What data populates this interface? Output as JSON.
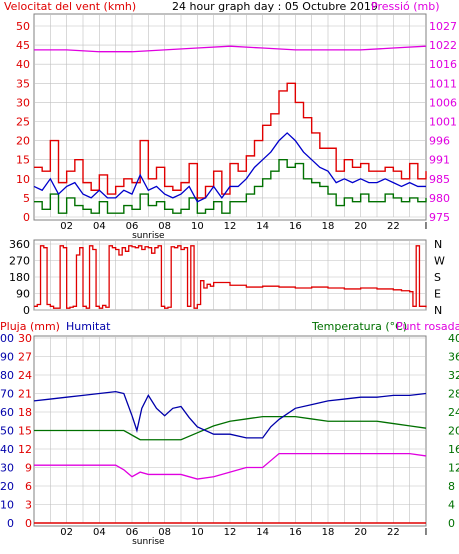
{
  "header": {
    "wind_title": "Velocitat del vent (kmh)",
    "center_title": "24 hour graph day : 05 Octubre 2019",
    "pressure_title": "Pressió (mb)"
  },
  "bottom_header": {
    "rain_title": "Pluja (mm)",
    "humidity_title": "Humitat",
    "temp_title": "Temperatura (°C)",
    "dew_title": "Punt rosada"
  },
  "colors": {
    "wind_axis": "#e00000",
    "pressure_axis": "#e000e0",
    "gust": "#e00000",
    "avg_wind": "#0000cc",
    "base_wind": "#007000",
    "wind_dir": "#e00000",
    "humidity": "#0000aa",
    "temperature": "#007000",
    "dew_point": "#e000e0",
    "rain": "#e00000",
    "grid": "#c0c0c0",
    "frame": "#808080",
    "dark_bar": "#800000"
  },
  "chart_data": [
    {
      "type": "line",
      "name": "wind-pressure",
      "xlabel": "sunrise",
      "x_ticks": [
        "02",
        "04",
        "06",
        "08",
        "10",
        "12",
        "14",
        "16",
        "18",
        "20",
        "22",
        "I"
      ],
      "y_left_ticks": [
        "0",
        "5",
        "10",
        "15",
        "20",
        "25",
        "30",
        "35",
        "40",
        "45",
        "50"
      ],
      "y_left_range": [
        0,
        50
      ],
      "y_right_ticks": [
        "975",
        "980",
        "985",
        "991",
        "996",
        "1001",
        "1006",
        "1011",
        "1016",
        "1022",
        "1027"
      ],
      "y_right_range": [
        975,
        1027
      ],
      "series": [
        {
          "key": "gust",
          "hours": [
            0,
            0.5,
            1,
            1.5,
            2,
            2.5,
            3,
            3.5,
            4,
            4.5,
            5,
            5.5,
            6,
            6.5,
            7,
            7.5,
            8,
            8.5,
            9,
            9.5,
            10,
            10.5,
            11,
            11.5,
            12,
            12.5,
            13,
            13.5,
            14,
            14.5,
            15,
            15.5,
            16,
            16.5,
            17,
            17.5,
            18,
            18.5,
            19,
            19.5,
            20,
            20.5,
            21,
            21.5,
            22,
            22.5,
            23,
            23.5,
            24
          ],
          "values": [
            13,
            12,
            20,
            9,
            12,
            15,
            9,
            7,
            11,
            6,
            8,
            10,
            9,
            20,
            10,
            13,
            8,
            7,
            9,
            14,
            5,
            8,
            12,
            6,
            14,
            12,
            16,
            20,
            24,
            27,
            33,
            35,
            30,
            26,
            22,
            18,
            18,
            12,
            15,
            13,
            14,
            12,
            12,
            13,
            12,
            10,
            14,
            10,
            12
          ]
        },
        {
          "key": "avg_wind",
          "hours": [
            0,
            0.5,
            1,
            1.5,
            2,
            2.5,
            3,
            3.5,
            4,
            4.5,
            5,
            5.5,
            6,
            6.5,
            7,
            7.5,
            8,
            8.5,
            9,
            9.5,
            10,
            10.5,
            11,
            11.5,
            12,
            12.5,
            13,
            13.5,
            14,
            14.5,
            15,
            15.5,
            16,
            16.5,
            17,
            17.5,
            18,
            18.5,
            19,
            19.5,
            20,
            20.5,
            21,
            21.5,
            22,
            22.5,
            23,
            23.5,
            24
          ],
          "values": [
            8,
            7,
            10,
            6,
            8,
            9,
            6,
            5,
            7,
            5,
            5,
            7,
            6,
            11,
            7,
            8,
            6,
            5,
            6,
            8,
            4,
            5,
            8,
            5,
            8,
            8,
            10,
            13,
            15,
            17,
            20,
            22,
            20,
            17,
            15,
            13,
            12,
            9,
            10,
            9,
            10,
            9,
            9,
            10,
            9,
            8,
            9,
            8,
            8
          ]
        },
        {
          "key": "base_wind",
          "hours": [
            0,
            0.5,
            1,
            1.5,
            2,
            2.5,
            3,
            3.5,
            4,
            4.5,
            5,
            5.5,
            6,
            6.5,
            7,
            7.5,
            8,
            8.5,
            9,
            9.5,
            10,
            10.5,
            11,
            11.5,
            12,
            12.5,
            13,
            13.5,
            14,
            14.5,
            15,
            15.5,
            16,
            16.5,
            17,
            17.5,
            18,
            18.5,
            19,
            19.5,
            20,
            20.5,
            21,
            21.5,
            22,
            22.5,
            23,
            23.5,
            24
          ],
          "values": [
            4,
            2,
            6,
            1,
            5,
            3,
            2,
            1,
            4,
            1,
            1,
            3,
            2,
            6,
            3,
            4,
            2,
            1,
            2,
            5,
            1,
            2,
            4,
            1,
            4,
            4,
            6,
            8,
            10,
            12,
            15,
            13,
            14,
            10,
            9,
            8,
            6,
            3,
            5,
            4,
            6,
            4,
            4,
            6,
            5,
            4,
            5,
            4,
            5
          ]
        },
        {
          "key": "pressure",
          "hours": [
            0,
            2,
            4,
            6,
            8,
            10,
            12,
            14,
            16,
            18,
            20,
            22,
            24
          ],
          "values": [
            1020.5,
            1020.5,
            1020,
            1020,
            1020.5,
            1021,
            1021.5,
            1021,
            1020.5,
            1020.5,
            1020.5,
            1021,
            1021.5
          ]
        }
      ]
    },
    {
      "type": "line",
      "name": "wind-direction",
      "y_ticks": [
        "360",
        "270",
        "180",
        "90",
        "0"
      ],
      "y_range": [
        0,
        360
      ],
      "y_right_ticks": [
        "N",
        "W",
        "S",
        "E",
        "N"
      ],
      "series": [
        {
          "key": "wind_dir",
          "hours": [
            0,
            0.2,
            0.4,
            0.6,
            0.8,
            1.0,
            1.2,
            1.4,
            1.6,
            1.8,
            2.0,
            2.2,
            2.4,
            2.6,
            2.8,
            3.0,
            3.2,
            3.4,
            3.6,
            3.8,
            4.0,
            4.2,
            4.4,
            4.6,
            4.8,
            5.0,
            5.2,
            5.4,
            5.6,
            5.8,
            6.0,
            6.2,
            6.4,
            6.6,
            6.8,
            7.0,
            7.2,
            7.4,
            7.6,
            7.8,
            8.0,
            8.2,
            8.4,
            8.6,
            8.8,
            9.0,
            9.2,
            9.4,
            9.6,
            9.8,
            10.0,
            10.2,
            10.4,
            10.6,
            10.8,
            11.0,
            12,
            13,
            14,
            15,
            16,
            17,
            18,
            19,
            20,
            21,
            22,
            22.5,
            23,
            23.2,
            23.4,
            23.6,
            24
          ],
          "values": [
            20,
            30,
            350,
            340,
            30,
            20,
            10,
            10,
            350,
            340,
            10,
            15,
            20,
            300,
            340,
            20,
            10,
            350,
            330,
            20,
            10,
            25,
            15,
            350,
            340,
            330,
            300,
            340,
            320,
            350,
            345,
            340,
            350,
            330,
            345,
            340,
            310,
            340,
            350,
            20,
            10,
            15,
            345,
            340,
            350,
            330,
            340,
            20,
            350,
            10,
            30,
            160,
            120,
            140,
            130,
            150,
            135,
            125,
            130,
            125,
            120,
            125,
            120,
            115,
            120,
            115,
            110,
            105,
            100,
            20,
            350,
            20,
            15
          ]
        }
      ]
    },
    {
      "type": "line",
      "name": "humidity-temperature",
      "xlabel": "sunrise",
      "x_ticks": [
        "02",
        "04",
        "06",
        "08",
        "10",
        "12",
        "14",
        "16",
        "18",
        "20",
        "22",
        "I"
      ],
      "y_left_ticks": [
        "0",
        "10",
        "20",
        "30",
        "40",
        "50",
        "60",
        "70",
        "80",
        "90",
        "100"
      ],
      "y_left_range": [
        0,
        100
      ],
      "y_rain_ticks": [
        "0",
        "3",
        "6",
        "9",
        "12",
        "15",
        "18",
        "21",
        "24",
        "27",
        "30"
      ],
      "y_rain_range": [
        0,
        30
      ],
      "y_right_ticks": [
        "0",
        "4",
        "8",
        "12",
        "16",
        "20",
        "24",
        "28",
        "32",
        "36",
        "40"
      ],
      "y_right_range": [
        0,
        40
      ],
      "series": [
        {
          "key": "humidity",
          "hours": [
            0,
            1,
            2,
            3,
            4,
            5,
            5.5,
            6,
            6.3,
            6.6,
            7,
            7.5,
            8,
            8.5,
            9,
            9.5,
            10,
            11,
            12,
            13,
            14,
            14.5,
            15,
            16,
            17,
            18,
            19,
            20,
            21,
            22,
            23,
            24
          ],
          "values": [
            66,
            67,
            68,
            69,
            70,
            71,
            70,
            58,
            50,
            62,
            69,
            62,
            58,
            62,
            63,
            57,
            52,
            48,
            48,
            46,
            46,
            52,
            56,
            62,
            64,
            66,
            67,
            68,
            68,
            69,
            69,
            70
          ]
        },
        {
          "key": "temperature",
          "hours": [
            0,
            1,
            2,
            3,
            4,
            5,
            5.5,
            6,
            6.5,
            7,
            8,
            9,
            10,
            11,
            12,
            13,
            14,
            15,
            16,
            17,
            18,
            19,
            20,
            21,
            22,
            23,
            24
          ],
          "values": [
            20,
            20,
            20,
            20,
            20,
            20,
            20,
            19,
            18,
            18,
            18,
            18,
            19.5,
            21,
            22,
            22.5,
            23,
            23,
            23,
            22.5,
            22,
            22,
            22,
            22,
            21.5,
            21,
            20.5
          ]
        },
        {
          "key": "dew_point",
          "hours": [
            0,
            1,
            2,
            3,
            4,
            5,
            5.5,
            6,
            6.5,
            7,
            8,
            9,
            10,
            11,
            12,
            13,
            14,
            14.5,
            15,
            16,
            17,
            18,
            19,
            20,
            21,
            22,
            23,
            24
          ],
          "values": [
            12.5,
            12.5,
            12.5,
            12.5,
            12.5,
            12.5,
            11.5,
            10,
            11,
            10.5,
            10.5,
            10.5,
            9.5,
            10,
            11,
            12,
            12,
            13.5,
            15,
            15,
            15,
            15,
            15,
            15,
            15,
            15,
            15,
            14.5
          ]
        },
        {
          "key": "rain",
          "hours": [
            0,
            24
          ],
          "values": [
            0,
            0
          ]
        }
      ]
    }
  ]
}
